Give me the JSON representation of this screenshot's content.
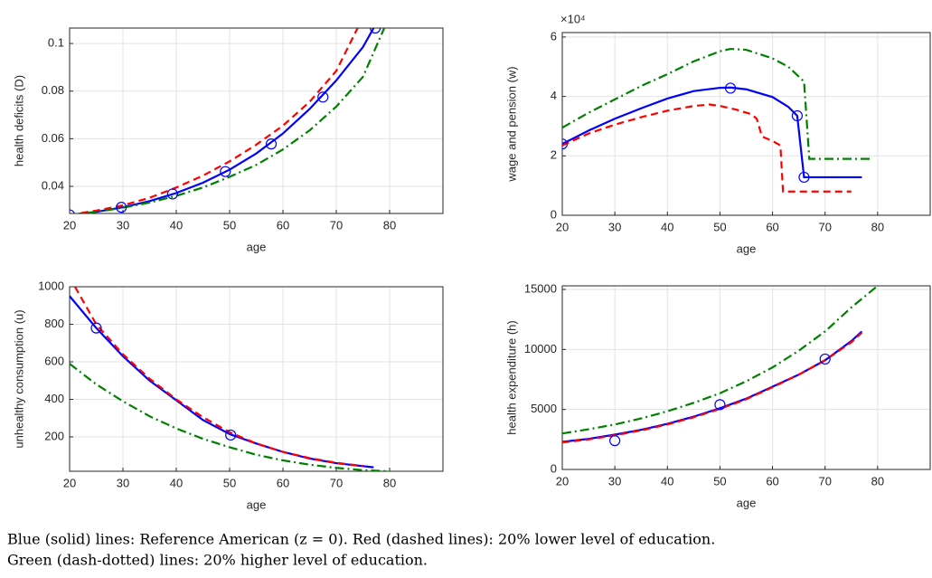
{
  "chart_data": [
    {
      "type": "line",
      "xlabel": "age",
      "ylabel": "health deficits (D)",
      "grid": true,
      "xlim": [
        20,
        90
      ],
      "xticks": [
        20,
        30,
        40,
        50,
        60,
        70,
        80
      ],
      "ylim": [
        0.0286,
        0.1065
      ],
      "yticks": [
        0.04,
        0.06,
        0.08,
        0.1
      ],
      "series": [
        {
          "color": "#0000ff",
          "style": "solid",
          "x": [
            20,
            25,
            30,
            35,
            40,
            45,
            50,
            55,
            60,
            65,
            70,
            75,
            77
          ],
          "values": [
            0.028,
            0.0293,
            0.0312,
            0.0338,
            0.0372,
            0.0415,
            0.047,
            0.0538,
            0.0622,
            0.0725,
            0.0845,
            0.0985,
            0.1065
          ]
        },
        {
          "color": "#ff0000",
          "style": "dashed",
          "x": [
            20,
            25,
            30,
            35,
            40,
            45,
            50,
            55,
            60,
            65,
            70,
            74
          ],
          "values": [
            0.028,
            0.0298,
            0.032,
            0.0352,
            0.0395,
            0.0445,
            0.0505,
            0.0575,
            0.0655,
            0.0755,
            0.0885,
            0.1065
          ]
        },
        {
          "color": "#008000",
          "style": "dashdot",
          "x": [
            20,
            25,
            30,
            35,
            40,
            45,
            50,
            55,
            60,
            65,
            70,
            75,
            79
          ],
          "values": [
            0.028,
            0.0293,
            0.031,
            0.0332,
            0.036,
            0.0395,
            0.044,
            0.049,
            0.0555,
            0.0635,
            0.0735,
            0.086,
            0.1065
          ]
        },
        {
          "color": "#0000ff",
          "style": "markers",
          "x": [
            20,
            29.7,
            39.3,
            49.2,
            57.8,
            67.5,
            77.3
          ],
          "values": [
            0.028,
            0.0312,
            0.0368,
            0.0462,
            0.0578,
            0.0775,
            0.1065
          ]
        }
      ]
    },
    {
      "type": "line",
      "xlabel": "age",
      "ylabel": "wage and pension (w)",
      "y_exponent": "×10⁴",
      "grid": true,
      "xlim": [
        20,
        90
      ],
      "xticks": [
        20,
        30,
        40,
        50,
        60,
        70,
        80
      ],
      "ylim": [
        0,
        61500
      ],
      "yticks": [
        {
          "value": 0,
          "label": "0"
        },
        {
          "value": 20000,
          "label": "2"
        },
        {
          "value": 40000,
          "label": "4"
        },
        {
          "value": 60000,
          "label": "6"
        }
      ],
      "series": [
        {
          "color": "#0000ff",
          "style": "solid",
          "x": [
            20,
            25,
            30,
            35,
            40,
            45,
            50,
            52,
            55,
            60,
            63,
            64.7,
            66,
            70,
            77
          ],
          "values": [
            24000,
            28500,
            32500,
            36000,
            39300,
            41800,
            42900,
            43000,
            42400,
            39800,
            36500,
            33500,
            12800,
            12800,
            12800
          ]
        },
        {
          "color": "#ff0000",
          "style": "dashed",
          "x": [
            20,
            25,
            30,
            35,
            40,
            45,
            48,
            50,
            53,
            56,
            57,
            58,
            60,
            61.5,
            62,
            70,
            75
          ],
          "values": [
            23500,
            27500,
            30500,
            33000,
            35200,
            36800,
            37300,
            36800,
            35600,
            34000,
            32500,
            26500,
            25000,
            23500,
            8000,
            8000,
            8000
          ]
        },
        {
          "color": "#008000",
          "style": "dashdot",
          "x": [
            20,
            25,
            30,
            35,
            40,
            45,
            50,
            52,
            55,
            60,
            63,
            66,
            67,
            70,
            79
          ],
          "values": [
            29500,
            34500,
            39000,
            43500,
            47500,
            51800,
            55200,
            56000,
            55700,
            52800,
            50000,
            45000,
            19000,
            19000,
            19000
          ]
        },
        {
          "color": "#0000ff",
          "style": "markers",
          "x": [
            20,
            52,
            64.7,
            66
          ],
          "values": [
            24000,
            42800,
            33500,
            12800
          ]
        }
      ]
    },
    {
      "type": "line",
      "xlabel": "age",
      "ylabel": "unhealthy consumption (u)",
      "grid": true,
      "xlim": [
        20,
        90
      ],
      "xticks": [
        20,
        30,
        40,
        50,
        60,
        70,
        80
      ],
      "ylim": [
        17,
        1000
      ],
      "yticks": [
        200,
        400,
        600,
        800,
        1000
      ],
      "series": [
        {
          "color": "#0000ff",
          "style": "solid",
          "x": [
            20,
            25,
            30,
            35,
            40,
            45,
            50,
            55,
            60,
            65,
            70,
            77
          ],
          "values": [
            950,
            780,
            630,
            500,
            395,
            290,
            215,
            165,
            120,
            85,
            60,
            38
          ]
        },
        {
          "color": "#ff0000",
          "style": "dashed",
          "x": [
            21,
            25,
            30,
            35,
            40,
            45,
            50,
            55,
            60,
            65,
            70,
            75
          ],
          "values": [
            1000,
            800,
            640,
            510,
            400,
            305,
            225,
            165,
            120,
            87,
            62,
            45
          ]
        },
        {
          "color": "#008000",
          "style": "dashdot",
          "x": [
            20,
            25,
            30,
            35,
            40,
            45,
            50,
            55,
            60,
            65,
            70,
            75,
            80
          ],
          "values": [
            590,
            480,
            390,
            310,
            245,
            190,
            145,
            105,
            75,
            52,
            35,
            23,
            17
          ]
        },
        {
          "color": "#0000ff",
          "style": "markers",
          "x": [
            25,
            50.2
          ],
          "values": [
            780,
            210
          ]
        }
      ]
    },
    {
      "type": "line",
      "xlabel": "age",
      "ylabel": "health expenditure (h)",
      "grid": true,
      "xlim": [
        20,
        90
      ],
      "xticks": [
        20,
        30,
        40,
        50,
        60,
        70,
        80
      ],
      "ylim": [
        0,
        15300
      ],
      "yticks": [
        0,
        5000,
        10000,
        15000
      ],
      "series": [
        {
          "color": "#0000ff",
          "style": "solid",
          "x": [
            20,
            25,
            30,
            35,
            40,
            45,
            50,
            55,
            60,
            65,
            70,
            75,
            77
          ],
          "values": [
            2300,
            2550,
            2900,
            3300,
            3800,
            4400,
            5100,
            5900,
            6900,
            7900,
            9100,
            10700,
            11500
          ]
        },
        {
          "color": "#ff0000",
          "style": "dashed",
          "x": [
            20,
            25,
            30,
            35,
            40,
            45,
            50,
            55,
            60,
            65,
            70,
            75,
            77
          ],
          "values": [
            2250,
            2500,
            2850,
            3250,
            3750,
            4350,
            5050,
            5850,
            6850,
            7900,
            9100,
            10600,
            11400
          ]
        },
        {
          "color": "#008000",
          "style": "dashdot",
          "x": [
            20,
            25,
            30,
            35,
            40,
            45,
            50,
            55,
            60,
            65,
            70,
            75,
            80
          ],
          "values": [
            3000,
            3350,
            3750,
            4250,
            4850,
            5550,
            6350,
            7350,
            8500,
            9900,
            11500,
            13500,
            15300
          ]
        },
        {
          "color": "#0000ff",
          "style": "markers",
          "x": [
            30,
            50,
            70
          ],
          "values": [
            2400,
            5400,
            9200
          ]
        }
      ]
    }
  ],
  "caption": [
    "Blue (solid) lines: Reference American (z = 0). Red (dashed lines): 20% lower level of education.",
    "Green (dash-dotted) lines: 20% higher level of education."
  ]
}
